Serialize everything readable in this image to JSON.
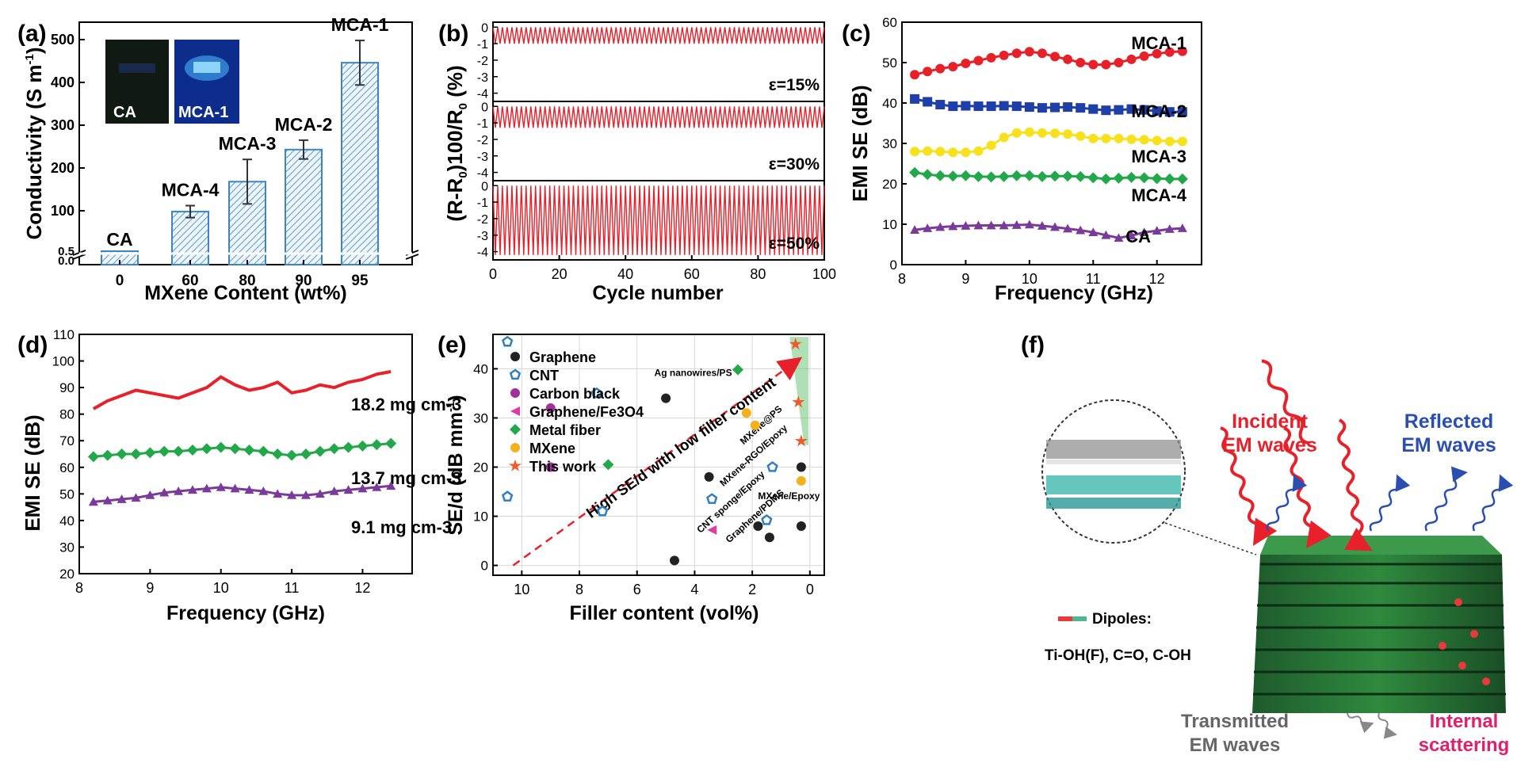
{
  "chart_data": [
    {
      "panel": "(a)",
      "type": "bar",
      "xlabel": "MXene Content (wt%)",
      "ylabel": "Conductivity (S m-1)",
      "categories": [
        "0",
        "60",
        "80",
        "90",
        "95"
      ],
      "bar_labels": [
        "CA",
        "MCA-4",
        "MCA-3",
        "MCA-2",
        "MCA-1"
      ],
      "values": [
        0.5,
        98,
        168,
        243,
        446
      ],
      "errors": [
        0,
        14,
        52,
        22,
        52
      ],
      "ylim": [
        0,
        520
      ],
      "yticks": [
        "100",
        "200",
        "300",
        "400",
        "500"
      ],
      "ybreak_ticks": [
        "0.0",
        "0.5"
      ],
      "inset_labels": [
        "CA",
        "MCA-1"
      ]
    },
    {
      "panel": "(b)",
      "type": "line",
      "xlabel": "Cycle number",
      "ylabel": "(R-R0)100/R0 (%)",
      "xticks": [
        "0",
        "20",
        "40",
        "60",
        "80",
        "100"
      ],
      "xlim": [
        0,
        100
      ],
      "subplots": [
        {
          "label": "ε=15%",
          "yticks": [
            "0",
            "-1",
            "-2",
            "-3",
            "-4"
          ],
          "ylim": [
            -4.5,
            0.3
          ],
          "min": -1.0
        },
        {
          "label": "ε=30%",
          "yticks": [
            "0",
            "-1",
            "-2",
            "-3",
            "-4"
          ],
          "ylim": [
            -4.5,
            0.3
          ],
          "min": -1.3
        },
        {
          "label": "ε=50%",
          "yticks": [
            "0",
            "-1",
            "-2",
            "-3",
            "-4"
          ],
          "ylim": [
            -4.5,
            0.3
          ],
          "min": -4.2
        }
      ]
    },
    {
      "panel": "(c)",
      "type": "line",
      "xlabel": "Frequency (GHz)",
      "ylabel": "EMI SE (dB)",
      "xticks": [
        "8",
        "9",
        "10",
        "11",
        "12"
      ],
      "xlim": [
        8,
        12.7
      ],
      "yticks": [
        "0",
        "10",
        "20",
        "30",
        "40",
        "50",
        "60"
      ],
      "ylim": [
        0,
        60
      ],
      "x": [
        8.2,
        8.4,
        8.6,
        8.8,
        9.0,
        9.2,
        9.4,
        9.6,
        9.8,
        10.0,
        10.2,
        10.4,
        10.6,
        10.8,
        11.0,
        11.2,
        11.4,
        11.6,
        11.8,
        12.0,
        12.2,
        12.4
      ],
      "series": [
        {
          "name": "MCA-1",
          "color": "#e8202a",
          "marker": "circle",
          "values": [
            47,
            47.8,
            48.5,
            49,
            49.8,
            50.5,
            51.2,
            51.8,
            52.3,
            52.7,
            52.3,
            51.5,
            50.8,
            50,
            49.5,
            49.5,
            50,
            50.8,
            51.6,
            52.2,
            52.6,
            52.8
          ]
        },
        {
          "name": "MCA-2",
          "color": "#1f3fa8",
          "marker": "square",
          "values": [
            41,
            40.3,
            39.6,
            39.2,
            39.3,
            39.2,
            39.2,
            39.3,
            39.2,
            39,
            38.8,
            38.9,
            39,
            38.8,
            38.5,
            38.2,
            38.3,
            38.5,
            38.3,
            38,
            37.8,
            37.8
          ]
        },
        {
          "name": "MCA-3",
          "color": "#f6e11c",
          "marker": "circle",
          "values": [
            28,
            28.1,
            28,
            27.8,
            27.8,
            28.1,
            29.5,
            31.5,
            32.6,
            32.8,
            32.6,
            32.5,
            32.3,
            31.8,
            31.2,
            31.2,
            31.2,
            31,
            30.9,
            30.7,
            30.5,
            30.5
          ]
        },
        {
          "name": "MCA-4",
          "color": "#22a84a",
          "marker": "diamond",
          "values": [
            22.8,
            22.3,
            22,
            21.9,
            22,
            21.8,
            21.7,
            21.8,
            22,
            22,
            21.8,
            21.9,
            21.9,
            21.8,
            21.5,
            21.2,
            21.4,
            21.6,
            21.5,
            21.3,
            21.2,
            21.2
          ]
        },
        {
          "name": "CA",
          "color": "#7a3a9a",
          "marker": "triangle",
          "values": [
            8.6,
            9,
            9.3,
            9.5,
            9.6,
            9.7,
            9.7,
            9.7,
            9.8,
            9.9,
            9.6,
            9.3,
            8.9,
            8.5,
            8,
            7.3,
            6.6,
            7.2,
            8,
            8.4,
            8.8,
            9
          ]
        }
      ]
    },
    {
      "panel": "(d)",
      "type": "line",
      "xlabel": "Frequency (GHz)",
      "ylabel": "EMI SE (dB)",
      "xticks": [
        "8",
        "9",
        "10",
        "11",
        "12"
      ],
      "xlim": [
        8,
        12.7
      ],
      "yticks": [
        "20",
        "30",
        "40",
        "50",
        "60",
        "70",
        "80",
        "90",
        "100",
        "110"
      ],
      "ylim": [
        20,
        110
      ],
      "x": [
        8.2,
        8.4,
        8.6,
        8.8,
        9.0,
        9.2,
        9.4,
        9.6,
        9.8,
        10.0,
        10.2,
        10.4,
        10.6,
        10.8,
        11.0,
        11.2,
        11.4,
        11.6,
        11.8,
        12.0,
        12.2,
        12.4
      ],
      "series": [
        {
          "name": "18.2 mg cm-3",
          "color": "#e8202a",
          "marker": "none",
          "values": [
            82,
            85,
            87,
            89,
            88,
            87,
            86,
            88,
            90,
            94,
            91,
            89,
            90,
            92,
            88,
            89,
            91,
            90,
            92,
            93,
            95,
            96
          ]
        },
        {
          "name": "13.7 mg cm-3",
          "color": "#22a84a",
          "marker": "diamond",
          "values": [
            64,
            64.5,
            65,
            65,
            65.5,
            66,
            66,
            66.5,
            67,
            67.5,
            67,
            66.5,
            66,
            65,
            64.5,
            65,
            66,
            67,
            67.5,
            68,
            68.5,
            69
          ]
        },
        {
          "name": "9.1 mg cm-3",
          "color": "#7a3a9a",
          "marker": "triangle",
          "values": [
            47,
            47.5,
            48,
            48.5,
            49.5,
            50.5,
            51,
            51.5,
            52,
            52.5,
            52,
            51.5,
            51,
            50,
            49.5,
            49.5,
            50,
            51,
            51.5,
            52,
            52.5,
            53
          ]
        }
      ]
    },
    {
      "panel": "(e)",
      "type": "scatter",
      "xlabel": "Filler content (vol%)",
      "ylabel": "SE/d (dB mm-1)",
      "xticks": [
        "10",
        "8",
        "6",
        "4",
        "2",
        "0"
      ],
      "xlim": [
        11,
        -0.5
      ],
      "yticks": [
        "0",
        "10",
        "20",
        "30",
        "40"
      ],
      "ylim": [
        -2,
        47
      ],
      "series": [
        {
          "name": "Graphene",
          "color": "#222222",
          "marker": "circle",
          "points": [
            [
              5,
              34
            ],
            [
              4.7,
              1
            ],
            [
              3.5,
              18
            ],
            [
              1.8,
              8
            ],
            [
              1.4,
              5.7
            ],
            [
              0.3,
              20
            ],
            [
              0.3,
              8
            ]
          ]
        },
        {
          "name": "CNT",
          "color": "#2f7fc2",
          "marker": "pentagon",
          "points": [
            [
              10.5,
              45.5
            ],
            [
              10.5,
              14
            ],
            [
              7.4,
              35
            ],
            [
              7.2,
              11
            ],
            [
              3.4,
              13.5
            ],
            [
              1.3,
              20
            ],
            [
              1.5,
              9.2
            ]
          ]
        },
        {
          "name": "Carbon black",
          "color": "#a0309a",
          "marker": "circle",
          "points": [
            [
              9,
              32
            ],
            [
              9,
              20
            ]
          ]
        },
        {
          "name": "Graphene/Fe3O4",
          "color": "#e23aa5",
          "marker": "triangle-left",
          "points": [
            [
              3.4,
              7.2
            ]
          ]
        },
        {
          "name": "Metal fiber",
          "color": "#22a84a",
          "marker": "diamond",
          "points": [
            [
              2.5,
              39.8
            ],
            [
              7,
              20.5
            ]
          ]
        },
        {
          "name": "MXene",
          "color": "#f3b21b",
          "marker": "circle",
          "points": [
            [
              2.2,
              31
            ],
            [
              1.9,
              28.5
            ],
            [
              0.3,
              17.2
            ]
          ]
        },
        {
          "name": "This work",
          "color": "#f05a28",
          "marker": "star",
          "points": [
            [
              0.5,
              45
            ],
            [
              0.4,
              33.2
            ],
            [
              0.3,
              25.3
            ]
          ]
        }
      ],
      "annotations": [
        "High SE/d with low filler content",
        "Ag nanowires/PS",
        "MXene@PS",
        "MXene-RGO/Epoxy",
        "CNT sponge/Epoxy",
        "Graphene/PDMS",
        "MXene/Epoxy"
      ]
    },
    {
      "panel": "(f)",
      "type": "diagram",
      "labels": [
        "Incident",
        "EM waves",
        "Reflected",
        "EM waves",
        "Dipoles:",
        "Ti-OH(F), C=O, C-OH",
        "Transmitted",
        "EM waves",
        "Internal",
        "scattering"
      ]
    }
  ]
}
